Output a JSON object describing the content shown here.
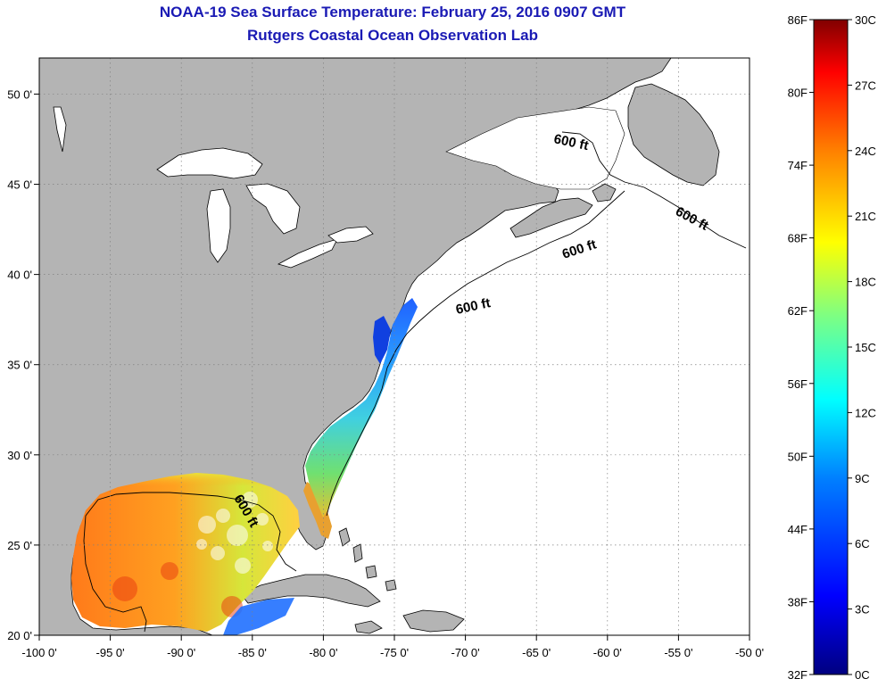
{
  "title": {
    "line1": "NOAA-19 Sea Surface Temperature:  February 25, 2016 0907 GMT",
    "line2": "Rutgers Coastal Ocean Observation Lab"
  },
  "map": {
    "lon_range": [
      -100,
      -50
    ],
    "lat_range": [
      20,
      52
    ],
    "lon_ticks": [
      "-100 0'",
      "-95 0'",
      "-90 0'",
      "-85 0'",
      "-80 0'",
      "-75 0'",
      "-70 0'",
      "-65 0'",
      "-60 0'",
      "-55 0'",
      "-50 0'"
    ],
    "lat_ticks": [
      "20 0'",
      "25 0'",
      "30 0'",
      "35 0'",
      "40 0'",
      "45 0'",
      "50 0'"
    ],
    "contour_label": "600 ft",
    "colors": {
      "land": "#b4b4b4",
      "ocean_nodata": "#ffffff",
      "grid": "#808080"
    }
  },
  "colorbar": {
    "f_labels": [
      "86F",
      "80F",
      "74F",
      "68F",
      "62F",
      "56F",
      "50F",
      "44F",
      "38F",
      "32F"
    ],
    "c_labels": [
      "30C",
      "27C",
      "24C",
      "21C",
      "18C",
      "15C",
      "12C",
      "9C",
      "6C",
      "3C",
      "0C"
    ],
    "range_c": [
      0,
      30
    ],
    "colormap": [
      "#000080",
      "#0000ff",
      "#0080ff",
      "#00ffff",
      "#80ff80",
      "#ffff00",
      "#ff8000",
      "#ff0000",
      "#800000"
    ]
  }
}
